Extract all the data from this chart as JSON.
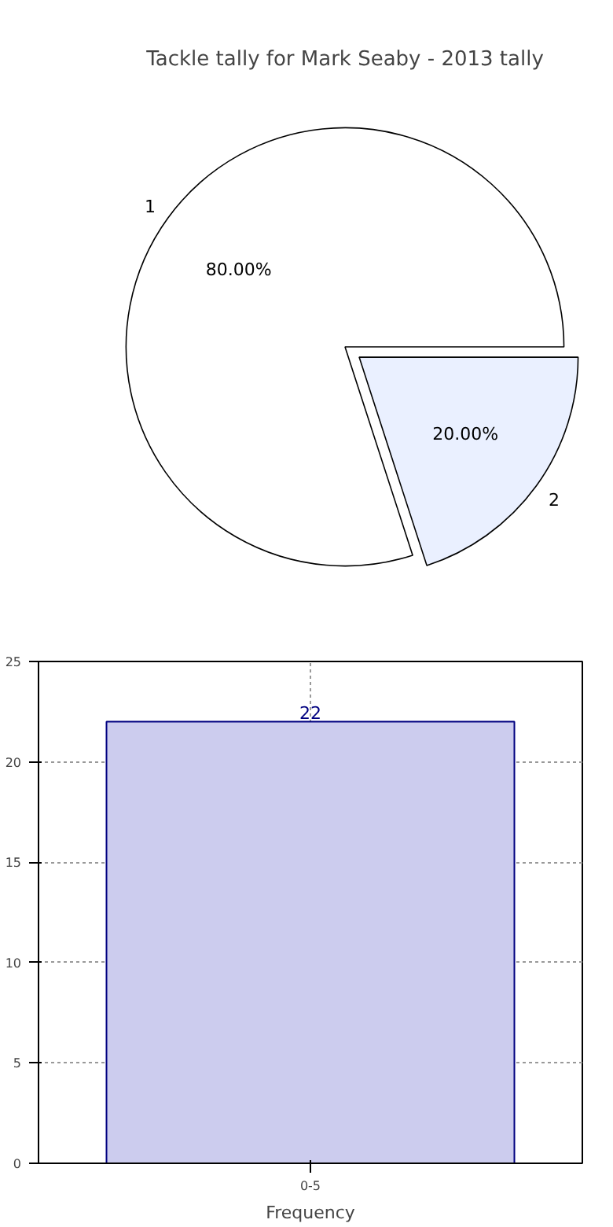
{
  "chart_data": [
    {
      "type": "pie",
      "title": "Tackle tally for Mark Seaby - 2013 tally",
      "categories": [
        "1",
        "2"
      ],
      "values": [
        80,
        20
      ],
      "colors": [
        "#ffffff",
        "#eaf0ff"
      ],
      "value_labels": [
        "80.00%",
        "20.00%"
      ]
    },
    {
      "type": "bar",
      "xlabel": "Frequency",
      "categories": [
        "0-5"
      ],
      "values": [
        22
      ],
      "color": "#ccccee",
      "ylim": [
        0,
        25
      ],
      "yticks": [
        0,
        5,
        10,
        15,
        20,
        25
      ],
      "grid": true,
      "data_labels": true
    }
  ]
}
